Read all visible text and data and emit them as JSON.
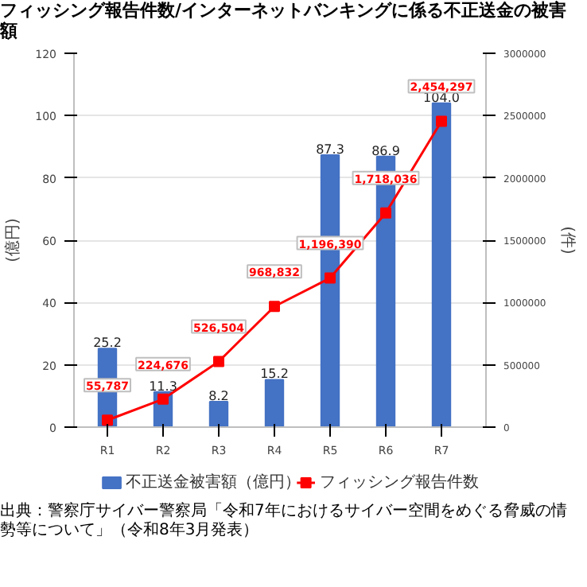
{
  "chart_data": {
    "type": "bar",
    "title": "フィッシング報告件数/インターネットバンキングに係る不正送金の被害額",
    "ylabel": "(億円)",
    "y2label": "(件)",
    "categories": [
      "R1",
      "R2",
      "R3",
      "R4",
      "R5",
      "R6",
      "R7"
    ],
    "series": [
      {
        "name": "不正送金被害額（億円）",
        "color": "#4472c4",
        "values": [
          25.2,
          11.3,
          8.2,
          15.2,
          87.3,
          86.9,
          104.0
        ],
        "value_labels": [
          "25.2",
          "11.3",
          "8.2",
          "15.2",
          "87.3",
          "86.9",
          "104.0"
        ]
      },
      {
        "name": "フィッシング報告件数",
        "type": "line",
        "axis": "y2",
        "color": "#ff0000",
        "values": [
          55787,
          224676,
          526504,
          968832,
          1196390,
          1718036,
          2454297
        ],
        "value_labels": [
          "55,787",
          "224,676",
          "526,504",
          "968,832",
          "1,196,390",
          "1,718,036",
          "2,454,297"
        ]
      }
    ],
    "ylim": [
      0,
      120
    ],
    "yticks": [
      0,
      20,
      40,
      60,
      80,
      100,
      120
    ],
    "y2lim": [
      0,
      3000000
    ],
    "y2ticks": [
      0,
      500000,
      1000000,
      1500000,
      2000000,
      2500000,
      3000000
    ],
    "grid": "y",
    "legend": "bottom",
    "marker": "square",
    "line_style": "solid",
    "annotations": [
      "出典：警察庁サイバー警察局「令和7年におけるサイバー空間をめぐる脅威の情勢等について」（令和8年3月発表）"
    ]
  }
}
